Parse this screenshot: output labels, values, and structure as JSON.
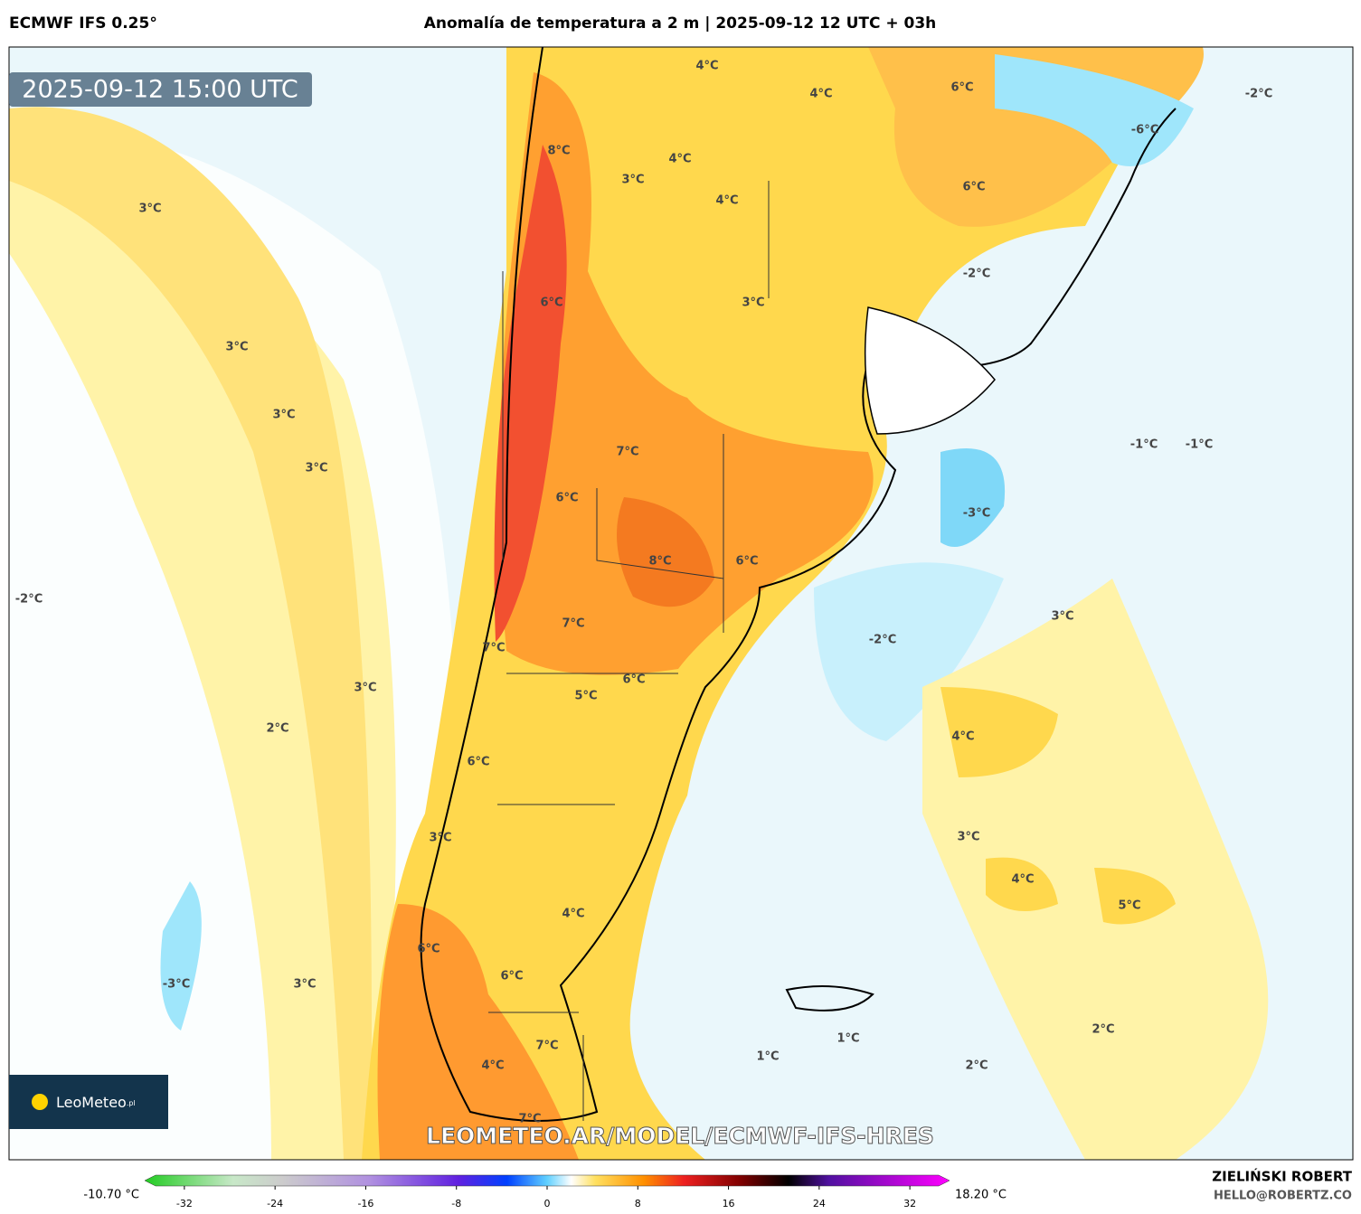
{
  "header": {
    "model": "ECMWF IFS 0.25°",
    "title": "Anomalía de temperatura a 2 m | 2025-09-12 12 UTC + 03h"
  },
  "timestamp": "2025-09-12 15:00 UTC",
  "map_labels": [
    "4°C",
    "4°C",
    "6°C",
    "-2°C",
    "-6°C",
    "8°C",
    "4°C",
    "3°C",
    "6°C",
    "4°C",
    "3°C",
    "-2°C",
    "6°C",
    "3°C",
    "3°C",
    "3°C",
    "3°C",
    "7°C",
    "-1°C",
    "-1°C",
    "6°C",
    "-3°C",
    "8°C",
    "6°C",
    "-2°C",
    "7°C",
    "3°C",
    "-2°C",
    "7°C",
    "6°C",
    "5°C",
    "3°C",
    "2°C",
    "4°C",
    "6°C",
    "3°C",
    "3°C",
    "4°C",
    "5°C",
    "4°C",
    "6°C",
    "-3°C",
    "3°C",
    "6°C",
    "2°C",
    "1°C",
    "1°C",
    "2°C",
    "4°C",
    "7°C",
    "7°C"
  ],
  "logo": {
    "name": "LeoMeteo",
    "suffix": ".pl"
  },
  "watermark": "LEOMETEO.AR/MODEL/ECMWF-IFS-HRES",
  "colorbar": {
    "min_label": "-10.70 °C",
    "max_label": "18.20 °C",
    "lim": [
      -35.5,
      35.5
    ],
    "ticks": [
      -32,
      -24,
      -16,
      -8,
      0,
      8,
      16,
      24,
      32
    ]
  },
  "author": {
    "name": "ZIELIŃSKI ROBERT",
    "email": "HELLO@ROBERTZ.CO"
  }
}
